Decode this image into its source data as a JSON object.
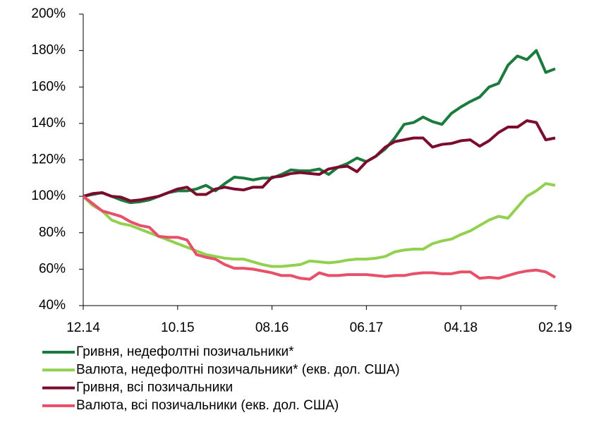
{
  "chart_data": {
    "type": "line",
    "categories": [
      "12.14",
      null,
      null,
      null,
      null,
      null,
      null,
      null,
      null,
      null,
      "10.15",
      null,
      null,
      null,
      null,
      null,
      null,
      null,
      null,
      null,
      "08.16",
      null,
      null,
      null,
      null,
      null,
      null,
      null,
      null,
      null,
      "06.17",
      null,
      null,
      null,
      null,
      null,
      null,
      null,
      null,
      null,
      "04.18",
      null,
      null,
      null,
      null,
      null,
      null,
      null,
      null,
      null,
      "02.19"
    ],
    "series": [
      {
        "name": "Гривня, недефолтні позичальники*",
        "color": "#1b7a3e",
        "values": [
          100,
          101,
          102,
          100,
          98,
          96.5,
          97,
          98,
          100,
          102,
          103,
          103,
          104,
          106,
          103,
          107,
          110.5,
          110,
          109,
          110,
          110,
          112,
          114.5,
          114,
          114,
          115,
          112,
          116,
          118,
          121,
          119,
          122,
          126,
          132,
          139.5,
          140.5,
          143.5,
          141,
          139.5,
          145.5,
          149,
          152,
          154.5,
          160,
          162,
          172,
          177,
          175,
          180,
          168,
          170
        ]
      },
      {
        "name": "Валюта, недефолтні позичальники* (екв. дол. США)",
        "color": "#92d050",
        "values": [
          100,
          95,
          92,
          87,
          85,
          84,
          82,
          80,
          78,
          76,
          74,
          72,
          70,
          68,
          67,
          66,
          65.5,
          65.5,
          64,
          62.5,
          61.5,
          61.5,
          62,
          62.5,
          64.5,
          64,
          63.5,
          64,
          65,
          65.5,
          65.5,
          66,
          67,
          69.5,
          70.5,
          71,
          71,
          74,
          75.5,
          76.5,
          79,
          81,
          84,
          87,
          89,
          88,
          94,
          100,
          103,
          107,
          106
        ]
      },
      {
        "name": "Гривня, всі позичальники",
        "color": "#7b0c2e",
        "values": [
          100,
          101.5,
          102,
          100,
          99.5,
          97.5,
          98,
          99,
          100,
          102,
          104,
          105,
          101,
          101,
          104,
          105,
          104,
          103.5,
          105,
          105,
          110.5,
          111,
          112.5,
          113,
          112.5,
          112,
          115,
          116,
          116.5,
          113.5,
          119,
          122,
          127,
          130,
          131,
          132,
          132,
          127,
          128.5,
          129,
          130.5,
          131,
          127.5,
          130.5,
          135,
          138,
          138,
          141.5,
          140.5,
          131,
          132
        ]
      },
      {
        "name": "Валюта, всі позичальники (екв. дол. США)",
        "color": "#e8506a",
        "values": [
          100,
          96,
          92,
          90.5,
          89,
          86,
          84,
          83,
          78,
          77.5,
          77.5,
          76,
          68,
          66.5,
          65.5,
          62.5,
          60.5,
          60.5,
          60,
          59,
          58,
          56.5,
          56.5,
          55,
          54.5,
          58,
          56.5,
          56.5,
          57,
          57,
          57,
          56.5,
          56,
          56.5,
          56.5,
          57.5,
          58,
          58,
          57.5,
          57.5,
          58.5,
          58.5,
          55,
          55.5,
          55,
          56.5,
          58,
          59,
          59.5,
          58.5,
          55.5
        ]
      }
    ],
    "ylim": [
      40,
      200
    ],
    "yticks": [
      {
        "value": 40,
        "label": "40%"
      },
      {
        "value": 60,
        "label": "60%"
      },
      {
        "value": 80,
        "label": "80%"
      },
      {
        "value": 100,
        "label": "100%"
      },
      {
        "value": 120,
        "label": "120%"
      },
      {
        "value": 140,
        "label": "140%"
      },
      {
        "value": 160,
        "label": "160%"
      },
      {
        "value": 180,
        "label": "180%"
      },
      {
        "value": 200,
        "label": "200%"
      }
    ],
    "legend": "bottom"
  }
}
